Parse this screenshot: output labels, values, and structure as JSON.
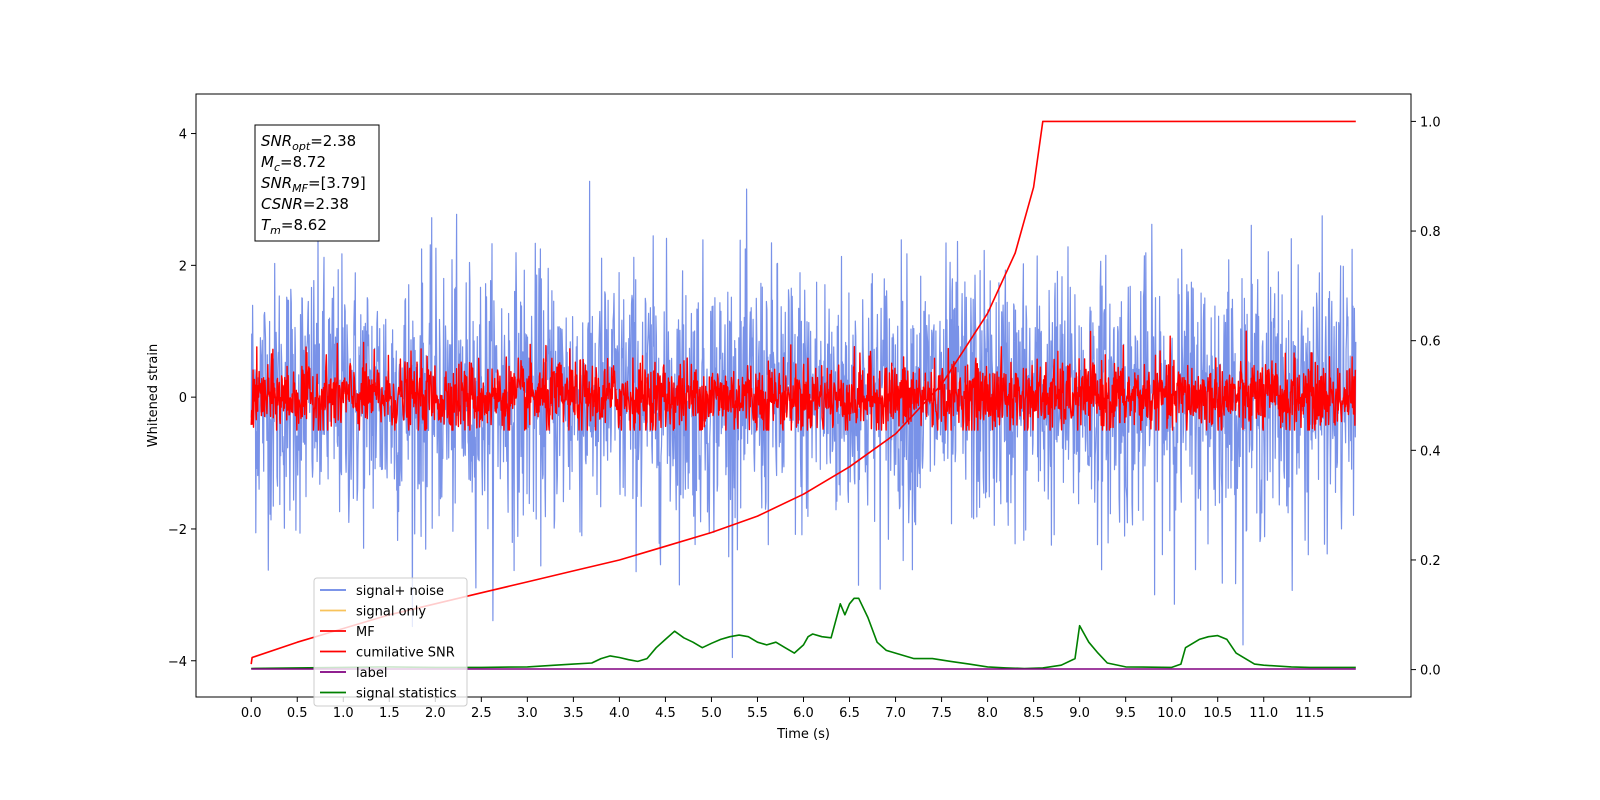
{
  "chart_data": {
    "type": "line",
    "xlabel": "Time (s)",
    "ylabel": "Whitened strain",
    "xlim": [
      -0.6,
      12.6
    ],
    "ylim": [
      -4.55,
      4.6
    ],
    "y2lim": [
      -0.05,
      1.05
    ],
    "x_ticks": [
      0.0,
      0.5,
      1.0,
      1.5,
      2.0,
      2.5,
      3.0,
      3.5,
      4.0,
      4.5,
      5.0,
      5.5,
      6.0,
      6.5,
      7.0,
      7.5,
      8.0,
      8.5,
      9.0,
      9.5,
      10.0,
      10.5,
      11.0,
      11.5
    ],
    "x_tick_labels": [
      "0.0",
      "0.5",
      "1.0",
      "1.5",
      "2.0",
      "2.5",
      "3.0",
      "3.5",
      "4.0",
      "4.5",
      "5.0",
      "5.5",
      "6.0",
      "6.5",
      "7.0",
      "7.5",
      "8.0",
      "8.5",
      "9.0",
      "9.5",
      "10.0",
      "10.5",
      "11.0",
      "11.5"
    ],
    "y_ticks": [
      -4,
      -2,
      0,
      2,
      4
    ],
    "y_tick_labels": [
      "−4",
      "−2",
      "0",
      "2",
      "4"
    ],
    "y2_ticks": [
      0.0,
      0.2,
      0.4,
      0.6,
      0.8,
      1.0
    ],
    "y2_tick_labels": [
      "0.0",
      "0.2",
      "0.4",
      "0.6",
      "0.8",
      "1.0"
    ],
    "grid": false,
    "legend_placement": "lower-left",
    "series": [
      {
        "name": "signal+ noise",
        "color": "#6a86e6",
        "axis": "left",
        "kind": "noise",
        "t_range": [
          0.0,
          12.0
        ],
        "mean": 0.0,
        "std": 1.0,
        "max": 4.15,
        "min": -3.95
      },
      {
        "name": "signal only",
        "color": "#f8c35b",
        "axis": "left",
        "kind": "none"
      },
      {
        "name": "MF",
        "color": "#ff0000",
        "axis": "left",
        "kind": "noise",
        "t_range": [
          0.0,
          12.0
        ],
        "mean": 0.0,
        "std": 0.28,
        "max": 1.0,
        "min": -0.5
      },
      {
        "name": "cumilative SNR",
        "color": "#ff0000",
        "axis": "right",
        "kind": "line",
        "x": [
          0.0,
          0.01,
          0.5,
          1.0,
          1.5,
          2.0,
          2.5,
          3.0,
          3.5,
          4.0,
          4.5,
          5.0,
          5.5,
          6.0,
          6.5,
          7.0,
          7.5,
          8.0,
          8.3,
          8.5,
          8.6,
          9.0,
          10.0,
          11.0,
          12.0
        ],
        "y": [
          0.01,
          0.022,
          0.05,
          0.075,
          0.1,
          0.12,
          0.14,
          0.16,
          0.18,
          0.2,
          0.225,
          0.25,
          0.28,
          0.32,
          0.37,
          0.43,
          0.52,
          0.65,
          0.76,
          0.88,
          1.0,
          1.0,
          1.0,
          1.0,
          1.0
        ]
      },
      {
        "name": "label",
        "color": "#800080",
        "axis": "right",
        "kind": "line",
        "x": [
          0.0,
          12.0
        ],
        "y": [
          0.001,
          0.001
        ]
      },
      {
        "name": "signal statistics",
        "color": "#008000",
        "axis": "right",
        "kind": "line",
        "x": [
          0.0,
          0.5,
          1.0,
          1.5,
          2.0,
          2.5,
          3.0,
          3.3,
          3.5,
          3.7,
          3.8,
          3.9,
          4.0,
          4.1,
          4.2,
          4.3,
          4.4,
          4.5,
          4.6,
          4.7,
          4.8,
          4.9,
          5.0,
          5.1,
          5.2,
          5.3,
          5.4,
          5.5,
          5.6,
          5.7,
          5.8,
          5.9,
          6.0,
          6.05,
          6.1,
          6.2,
          6.3,
          6.4,
          6.45,
          6.5,
          6.55,
          6.6,
          6.7,
          6.8,
          6.9,
          7.0,
          7.2,
          7.4,
          7.6,
          7.8,
          8.0,
          8.2,
          8.4,
          8.6,
          8.8,
          8.95,
          9.0,
          9.1,
          9.2,
          9.3,
          9.5,
          10.0,
          10.1,
          10.15,
          10.2,
          10.3,
          10.4,
          10.5,
          10.6,
          10.7,
          10.8,
          10.9,
          11.0,
          11.3,
          11.5,
          12.0
        ],
        "y": [
          0.002,
          0.003,
          0.004,
          0.005,
          0.004,
          0.004,
          0.005,
          0.008,
          0.01,
          0.012,
          0.02,
          0.025,
          0.022,
          0.018,
          0.015,
          0.02,
          0.04,
          0.055,
          0.07,
          0.058,
          0.05,
          0.04,
          0.048,
          0.055,
          0.06,
          0.063,
          0.06,
          0.05,
          0.045,
          0.05,
          0.04,
          0.03,
          0.045,
          0.06,
          0.065,
          0.06,
          0.058,
          0.12,
          0.1,
          0.12,
          0.13,
          0.13,
          0.095,
          0.05,
          0.035,
          0.03,
          0.02,
          0.02,
          0.015,
          0.01,
          0.005,
          0.003,
          0.002,
          0.003,
          0.008,
          0.02,
          0.08,
          0.05,
          0.03,
          0.012,
          0.005,
          0.004,
          0.01,
          0.04,
          0.045,
          0.055,
          0.06,
          0.062,
          0.055,
          0.03,
          0.02,
          0.01,
          0.008,
          0.005,
          0.004,
          0.004
        ]
      }
    ],
    "info_box": [
      {
        "sym": "SNR",
        "sub": "opt",
        "val": "=2.38"
      },
      {
        "sym": "M",
        "sub": "c",
        "val": "=8.72"
      },
      {
        "sym": "SNR",
        "sub": "MF",
        "val": "=[3.79]"
      },
      {
        "sym": "CSNR",
        "sub": "",
        "val": "=2.38"
      },
      {
        "sym": "T",
        "sub": "m",
        "val": "=8.62"
      }
    ]
  }
}
